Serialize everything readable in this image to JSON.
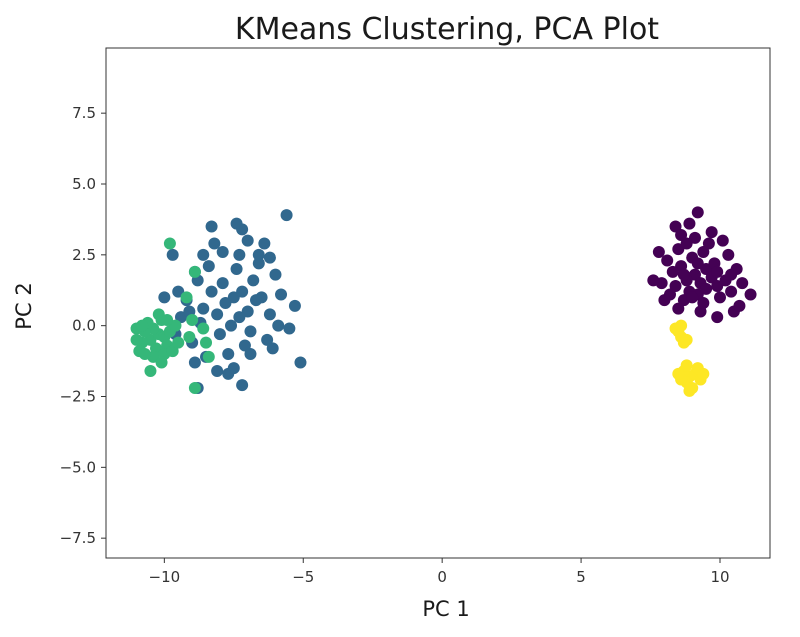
{
  "chart_data": {
    "type": "scatter",
    "title": "KMeans Clustering, PCA Plot",
    "xlabel": "PC 1",
    "ylabel": "PC 2",
    "xlim": [
      -12.1,
      11.8
    ],
    "ylim": [
      -8.2,
      9.8
    ],
    "xticks": [
      -10,
      -5,
      0,
      5,
      10
    ],
    "xtick_labels": [
      "−10",
      "−5",
      "0",
      "5",
      "10"
    ],
    "yticks": [
      -7.5,
      -5.0,
      -2.5,
      0.0,
      2.5,
      5.0,
      7.5
    ],
    "ytick_labels": [
      "−7.5",
      "−5.0",
      "−2.5",
      "0.0",
      "2.5",
      "5.0",
      "7.5"
    ],
    "grid": false,
    "series": [
      {
        "color": "#440154",
        "points": [
          [
            9.1,
            1.8
          ],
          [
            8.8,
            1.6
          ],
          [
            9.3,
            1.5
          ],
          [
            9.5,
            2.0
          ],
          [
            8.6,
            2.1
          ],
          [
            9.0,
            2.4
          ],
          [
            9.7,
            1.7
          ],
          [
            8.4,
            1.4
          ],
          [
            9.2,
            1.1
          ],
          [
            8.9,
            1.2
          ],
          [
            9.9,
            1.4
          ],
          [
            9.4,
            2.6
          ],
          [
            8.3,
            1.9
          ],
          [
            9.8,
            2.2
          ],
          [
            8.7,
            0.9
          ],
          [
            9.0,
            1.0
          ],
          [
            10.2,
            1.6
          ],
          [
            10.4,
            1.2
          ],
          [
            7.9,
            1.5
          ],
          [
            8.1,
            2.3
          ],
          [
            8.5,
            2.7
          ],
          [
            9.6,
            2.9
          ],
          [
            9.1,
            3.1
          ],
          [
            8.9,
            3.6
          ],
          [
            9.2,
            4.0
          ],
          [
            8.4,
            3.5
          ],
          [
            10.3,
            2.5
          ],
          [
            10.6,
            2.0
          ],
          [
            10.8,
            1.5
          ],
          [
            11.1,
            1.1
          ],
          [
            7.6,
            1.6
          ],
          [
            7.8,
            2.6
          ],
          [
            9.3,
            0.5
          ],
          [
            9.9,
            0.3
          ],
          [
            8.5,
            0.6
          ],
          [
            10.5,
            0.5
          ],
          [
            8.2,
            1.1
          ],
          [
            10.0,
            1.0
          ],
          [
            9.4,
            0.8
          ],
          [
            8.8,
            2.9
          ],
          [
            10.1,
            3.0
          ],
          [
            9.7,
            3.3
          ],
          [
            8.6,
            3.2
          ],
          [
            10.7,
            0.7
          ],
          [
            9.5,
            1.3
          ],
          [
            8.0,
            0.9
          ],
          [
            9.2,
            2.2
          ],
          [
            8.7,
            1.8
          ],
          [
            9.9,
            1.9
          ],
          [
            10.4,
            1.8
          ]
        ]
      },
      {
        "color": "#31688e",
        "points": [
          [
            -7.5,
            1.0
          ],
          [
            -7.2,
            1.2
          ],
          [
            -7.8,
            0.8
          ],
          [
            -7.0,
            0.5
          ],
          [
            -7.9,
            1.5
          ],
          [
            -6.8,
            1.6
          ],
          [
            -8.1,
            0.4
          ],
          [
            -7.4,
            2.0
          ],
          [
            -6.5,
            1.0
          ],
          [
            -8.3,
            1.2
          ],
          [
            -7.6,
            0.0
          ],
          [
            -6.9,
            -0.2
          ],
          [
            -8.0,
            -0.3
          ],
          [
            -7.3,
            2.5
          ],
          [
            -6.6,
            2.2
          ],
          [
            -8.4,
            2.1
          ],
          [
            -7.1,
            -0.7
          ],
          [
            -7.7,
            -1.0
          ],
          [
            -6.2,
            0.4
          ],
          [
            -8.6,
            0.6
          ],
          [
            -8.8,
            1.6
          ],
          [
            -6.0,
            1.8
          ],
          [
            -6.3,
            -0.5
          ],
          [
            -7.4,
            3.6
          ],
          [
            -7.2,
            3.4
          ],
          [
            -5.6,
            3.9
          ],
          [
            -8.2,
            2.9
          ],
          [
            -6.4,
            2.9
          ],
          [
            -8.3,
            3.5
          ],
          [
            -9.7,
            2.5
          ],
          [
            -9.2,
            0.9
          ],
          [
            -9.5,
            1.2
          ],
          [
            -10.0,
            1.0
          ],
          [
            -9.4,
            0.3
          ],
          [
            -9.6,
            -0.3
          ],
          [
            -9.0,
            -0.6
          ],
          [
            -8.9,
            -1.3
          ],
          [
            -8.5,
            -1.1
          ],
          [
            -8.1,
            -1.6
          ],
          [
            -7.5,
            -1.5
          ],
          [
            -7.2,
            -2.1
          ],
          [
            -7.7,
            -1.7
          ],
          [
            -8.8,
            -2.2
          ],
          [
            -6.9,
            -1.0
          ],
          [
            -6.1,
            -0.8
          ],
          [
            -5.9,
            0.0
          ],
          [
            -5.3,
            0.7
          ],
          [
            -5.1,
            -1.3
          ],
          [
            -5.5,
            -0.1
          ],
          [
            -5.8,
            1.1
          ],
          [
            -6.6,
            2.5
          ],
          [
            -7.9,
            2.6
          ],
          [
            -8.6,
            2.5
          ],
          [
            -8.9,
            1.9
          ],
          [
            -7.0,
            3.0
          ],
          [
            -6.2,
            2.4
          ],
          [
            -9.1,
            0.5
          ],
          [
            -8.7,
            0.1
          ],
          [
            -7.3,
            0.3
          ],
          [
            -6.7,
            0.9
          ]
        ]
      },
      {
        "color": "#35b779",
        "points": [
          [
            -10.5,
            -0.5
          ],
          [
            -10.2,
            -0.3
          ],
          [
            -10.8,
            -0.6
          ],
          [
            -10.4,
            -0.1
          ],
          [
            -10.0,
            -0.4
          ],
          [
            -10.7,
            -0.2
          ],
          [
            -10.3,
            -0.8
          ],
          [
            -9.9,
            -0.7
          ],
          [
            -10.6,
            0.1
          ],
          [
            -11.0,
            -0.5
          ],
          [
            -9.8,
            -0.2
          ],
          [
            -10.1,
            0.2
          ],
          [
            -10.9,
            -0.9
          ],
          [
            -10.4,
            -1.1
          ],
          [
            -10.0,
            -1.0
          ],
          [
            -9.7,
            -0.9
          ],
          [
            -9.6,
            0.0
          ],
          [
            -10.2,
            0.4
          ],
          [
            -10.5,
            -1.6
          ],
          [
            -8.9,
            -2.2
          ],
          [
            -9.8,
            2.9
          ],
          [
            -9.2,
            1.0
          ],
          [
            -8.9,
            1.9
          ],
          [
            -9.1,
            -0.4
          ],
          [
            -8.6,
            -0.1
          ],
          [
            -8.5,
            -0.6
          ],
          [
            -8.4,
            -1.1
          ],
          [
            -9.0,
            0.2
          ],
          [
            -9.9,
            0.2
          ],
          [
            -10.7,
            -1.0
          ],
          [
            -11.0,
            -0.1
          ],
          [
            -10.8,
            0.0
          ],
          [
            -9.5,
            -0.6
          ],
          [
            -10.1,
            -1.3
          ]
        ]
      },
      {
        "color": "#fde725",
        "points": [
          [
            8.9,
            -1.8
          ],
          [
            8.7,
            -1.6
          ],
          [
            9.1,
            -1.7
          ],
          [
            8.8,
            -2.0
          ],
          [
            9.0,
            -2.2
          ],
          [
            8.6,
            -1.9
          ],
          [
            9.3,
            -1.9
          ],
          [
            8.8,
            -1.4
          ],
          [
            9.2,
            -1.5
          ],
          [
            8.5,
            -1.7
          ],
          [
            9.4,
            -1.7
          ],
          [
            8.9,
            -2.3
          ],
          [
            8.4,
            -0.1
          ],
          [
            8.6,
            -0.4
          ],
          [
            8.7,
            -0.6
          ],
          [
            8.5,
            -0.2
          ],
          [
            8.8,
            -0.5
          ],
          [
            8.6,
            0.0
          ]
        ]
      }
    ]
  }
}
